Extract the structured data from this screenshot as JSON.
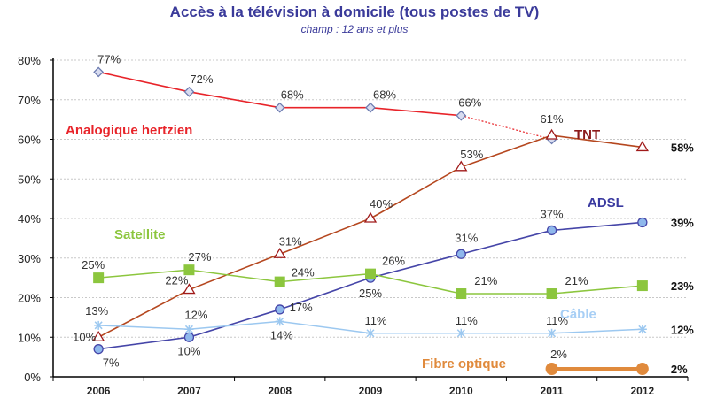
{
  "chart_data": {
    "type": "line",
    "title": "Accès à la télévision à domicile (tous postes de TV)",
    "subtitle": "champ : 12 ans et plus",
    "xlabel": "",
    "ylabel": "",
    "categories": [
      "2006",
      "2007",
      "2008",
      "2009",
      "2010",
      "2011",
      "2012"
    ],
    "yticks": [
      "0%",
      "10%",
      "20%",
      "30%",
      "40%",
      "50%",
      "60%",
      "70%",
      "80%"
    ],
    "ylim": [
      0,
      80
    ],
    "grid": true,
    "series": [
      {
        "name": "Analogique hertzien",
        "color": "#e8242a",
        "label_color": "#e8242a",
        "marker": "diamond",
        "values": [
          77,
          72,
          68,
          68,
          66,
          60,
          null
        ],
        "labels": [
          "77%",
          "72%",
          "68%",
          "68%",
          "66%",
          "",
          ""
        ],
        "dotted_segment": [
          4,
          5
        ]
      },
      {
        "name": "TNT",
        "color": "#b5471f",
        "label_color": "#8b1a1a",
        "marker": "triangle",
        "values": [
          10,
          22,
          31,
          40,
          53,
          61,
          58
        ],
        "labels": [
          "10%",
          "22%",
          "31%",
          "40%",
          "53%",
          "61%",
          "58%"
        ]
      },
      {
        "name": "ADSL",
        "color": "#4545a8",
        "label_color": "#3a3aa0",
        "marker": "circle",
        "values": [
          7,
          10,
          17,
          25,
          31,
          37,
          39
        ],
        "labels": [
          "7%",
          "10%",
          "17%",
          "25%",
          "31%",
          "37%",
          "39%"
        ]
      },
      {
        "name": "Satellite",
        "color": "#8cc63e",
        "label_color": "#8cc63e",
        "marker": "square",
        "values": [
          25,
          27,
          24,
          26,
          21,
          21,
          23
        ],
        "labels": [
          "25%",
          "27%",
          "24%",
          "26%",
          "21%",
          "21%",
          "23%"
        ]
      },
      {
        "name": "Câble",
        "color": "#9cc8f0",
        "label_color": "#a8cff5",
        "marker": "star",
        "values": [
          13,
          12,
          14,
          11,
          11,
          11,
          12
        ],
        "labels": [
          "13%",
          "12%",
          "14%",
          "11%",
          "11%",
          "11%",
          "12%"
        ]
      },
      {
        "name": "Fibre optique",
        "color": "#e08a3c",
        "label_color": "#e08a3c",
        "marker": "bigcircle",
        "values": [
          null,
          null,
          null,
          null,
          null,
          2,
          2
        ],
        "labels": [
          "",
          "",
          "",
          "",
          "",
          "2%",
          "2%"
        ]
      }
    ]
  }
}
